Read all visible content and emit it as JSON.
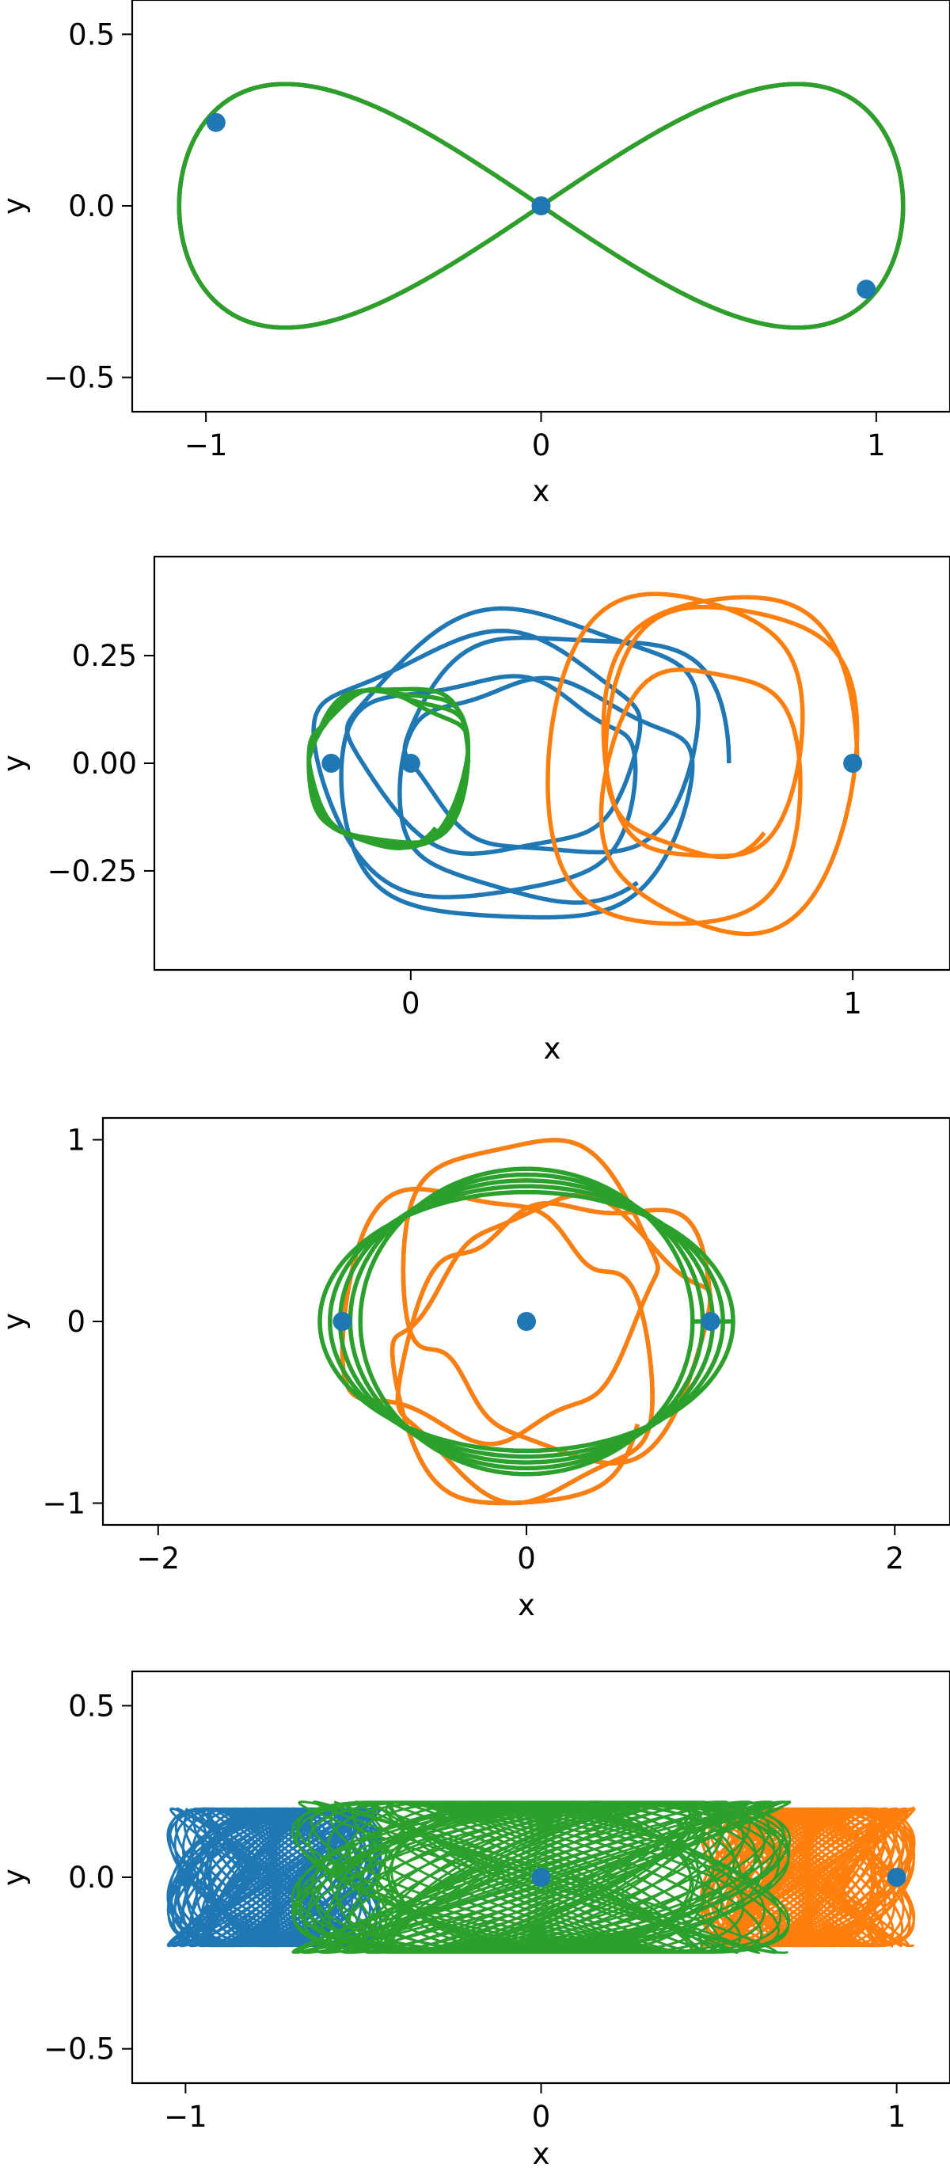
{
  "chart_data": [
    {
      "type": "line",
      "title": "",
      "xlabel": "x",
      "ylabel": "y",
      "xlim": [
        -1.22,
        1.22
      ],
      "ylim": [
        -0.6,
        0.6
      ],
      "xticks": [
        -1,
        0,
        1
      ],
      "xtick_labels": [
        "−1",
        "0",
        "1"
      ],
      "yticks": [
        -0.5,
        0.0,
        0.5
      ],
      "ytick_labels": [
        "−0.5",
        "0.0",
        "0.5"
      ],
      "grid": false,
      "series": [
        {
          "color": "#1f77b4",
          "kind": "figure-eight",
          "params": {
            "a": 1.08,
            "b": 0.71,
            "phase": 0
          },
          "start": [
            -0.97,
            0.243
          ]
        },
        {
          "color": "#ff7f0e",
          "kind": "figure-eight",
          "params": {
            "a": 1.08,
            "b": 0.71,
            "phase": 0
          },
          "start": [
            0.97,
            -0.243
          ]
        },
        {
          "color": "#2ca02c",
          "kind": "figure-eight",
          "params": {
            "a": 1.08,
            "b": 0.71,
            "phase": 0
          },
          "start": [
            0.0,
            0.0
          ]
        }
      ]
    },
    {
      "type": "line",
      "title": "",
      "xlabel": "x",
      "ylabel": "y",
      "xlim": [
        -0.58,
        1.22
      ],
      "ylim": [
        -0.48,
        0.48
      ],
      "xticks": [
        0,
        1
      ],
      "xtick_labels": [
        "0",
        "1"
      ],
      "yticks": [
        -0.25,
        0.0,
        0.25
      ],
      "ytick_labels": [
        "−0.25",
        "0.00",
        "0.25"
      ],
      "grid": false,
      "series": [
        {
          "color": "#1f77b4",
          "kind": "rosette",
          "params": {
            "cx": 0.25,
            "rx": 0.47,
            "ry": 0.36,
            "k": 3,
            "loops": 5
          },
          "start": [
            0.0,
            0.0
          ]
        },
        {
          "color": "#ff7f0e",
          "kind": "rosette",
          "params": {
            "cx": 0.66,
            "rx": 0.35,
            "ry": 0.43,
            "k": 2,
            "loops": 4
          },
          "start": [
            1.0,
            0.0
          ]
        },
        {
          "color": "#2ca02c",
          "kind": "rosette",
          "params": {
            "cx": -0.11,
            "rx": 0.24,
            "ry": 0.23,
            "k": 3,
            "loops": 4
          },
          "start": [
            -0.18,
            0.0
          ]
        }
      ]
    },
    {
      "type": "line",
      "title": "",
      "xlabel": "x",
      "ylabel": "y",
      "xlim": [
        -2.3,
        2.3
      ],
      "ylim": [
        -1.12,
        1.12
      ],
      "xticks": [
        -2,
        0,
        2
      ],
      "xtick_labels": [
        "−2",
        "0",
        "2"
      ],
      "yticks": [
        -1,
        0,
        1
      ],
      "ytick_labels": [
        "−1",
        "0",
        "1"
      ],
      "grid": false,
      "series": [
        {
          "color": "#1f77b4",
          "kind": "rosette",
          "params": {
            "cx": 0.0,
            "rx": 1.0,
            "ry": 1.0,
            "k": 4,
            "loops": 4
          },
          "start": [
            -1.0,
            0.0
          ]
        },
        {
          "color": "#ff7f0e",
          "kind": "rosette",
          "params": {
            "cx": 0.0,
            "rx": 1.0,
            "ry": 1.0,
            "k": 4,
            "loops": 4
          },
          "start": [
            1.0,
            0.0
          ]
        },
        {
          "color": "#2ca02c",
          "kind": "ellipses",
          "params": {
            "cx": 0.0,
            "rx": 1.1,
            "ry": 0.8,
            "count": 5
          },
          "start": [
            0.0,
            0.0
          ]
        }
      ]
    },
    {
      "type": "line",
      "title": "",
      "xlabel": "x",
      "ylabel": "y",
      "xlim": [
        -1.15,
        1.15
      ],
      "ylim": [
        -0.6,
        0.6
      ],
      "xticks": [
        -1,
        0,
        1
      ],
      "xtick_labels": [
        "−1",
        "0",
        "1"
      ],
      "yticks": [
        -0.5,
        0.0,
        0.5
      ],
      "ytick_labels": [
        "−0.5",
        "0.0",
        "0.5"
      ],
      "grid": false,
      "series": [
        {
          "color": "#1f77b4",
          "kind": "dense-band",
          "params": {
            "cx": -0.75,
            "rx": 0.3,
            "ry": 0.2
          },
          "start": [
            -1.0,
            0.0
          ]
        },
        {
          "color": "#ff7f0e",
          "kind": "dense-band",
          "params": {
            "cx": 0.75,
            "rx": 0.3,
            "ry": 0.2
          },
          "start": [
            1.0,
            0.0
          ]
        },
        {
          "color": "#2ca02c",
          "kind": "dense-band",
          "params": {
            "cx": 0.0,
            "rx": 0.7,
            "ry": 0.22
          },
          "start": [
            0.0,
            0.0
          ]
        }
      ]
    }
  ]
}
